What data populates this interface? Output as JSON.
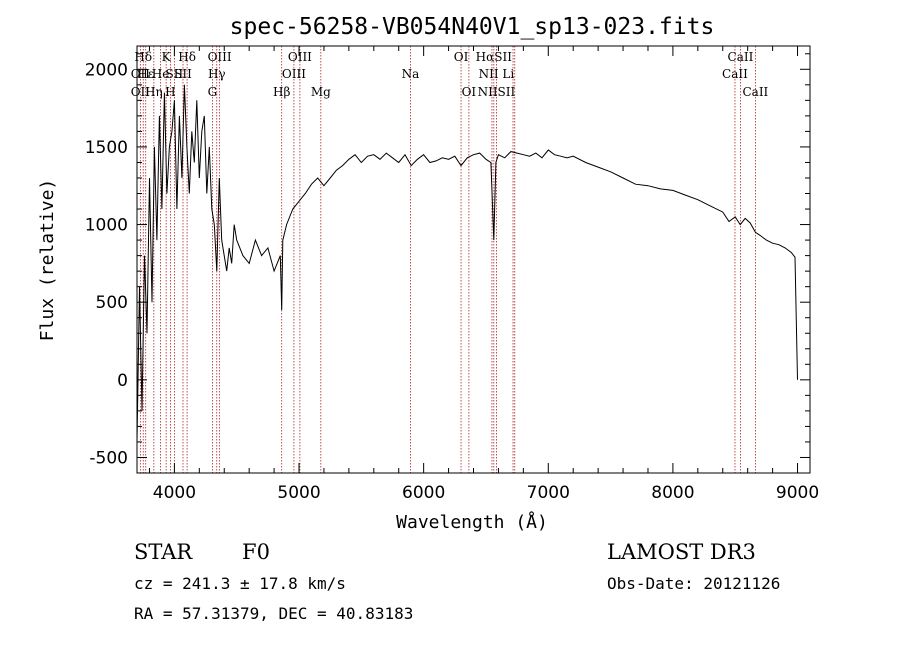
{
  "chart_data": {
    "type": "line",
    "title": "spec-56258-VB054N40V1_sp13-023.fits",
    "xlabel": "Wavelength (Å)",
    "ylabel": "Flux (relative)",
    "xlim": [
      3700,
      9100
    ],
    "ylim": [
      -600,
      2150
    ],
    "xticks": [
      4000,
      5000,
      6000,
      7000,
      8000,
      9000
    ],
    "yticks": [
      -500,
      0,
      500,
      1000,
      1500,
      2000
    ],
    "series": [
      {
        "name": "flux",
        "x": [
          3700,
          3720,
          3740,
          3760,
          3780,
          3800,
          3820,
          3840,
          3860,
          3880,
          3900,
          3920,
          3940,
          3960,
          3980,
          4000,
          4020,
          4040,
          4060,
          4080,
          4100,
          4120,
          4140,
          4160,
          4180,
          4200,
          4220,
          4240,
          4260,
          4280,
          4300,
          4320,
          4340,
          4360,
          4380,
          4400,
          4420,
          4440,
          4460,
          4480,
          4500,
          4550,
          4600,
          4650,
          4700,
          4750,
          4800,
          4850,
          4861,
          4870,
          4900,
          4950,
          5000,
          5050,
          5100,
          5150,
          5200,
          5250,
          5300,
          5350,
          5400,
          5450,
          5500,
          5550,
          5600,
          5650,
          5700,
          5750,
          5800,
          5850,
          5900,
          5950,
          6000,
          6050,
          6100,
          6150,
          6200,
          6250,
          6300,
          6350,
          6400,
          6450,
          6500,
          6540,
          6563,
          6580,
          6600,
          6650,
          6700,
          6750,
          6800,
          6850,
          6900,
          6950,
          7000,
          7050,
          7100,
          7150,
          7200,
          7300,
          7400,
          7500,
          7600,
          7700,
          7800,
          7900,
          8000,
          8100,
          8200,
          8300,
          8400,
          8450,
          8500,
          8540,
          8580,
          8620,
          8662,
          8700,
          8750,
          8800,
          8850,
          8900,
          8950,
          8980,
          9000
        ],
        "values": [
          -400,
          600,
          -200,
          800,
          300,
          1300,
          500,
          1500,
          900,
          1700,
          1100,
          1850,
          1200,
          1500,
          1600,
          1800,
          1100,
          1700,
          1300,
          1900,
          1500,
          1200,
          1600,
          1400,
          1800,
          1300,
          1600,
          1700,
          1200,
          1500,
          1100,
          1000,
          700,
          1300,
          900,
          800,
          700,
          850,
          750,
          1000,
          900,
          800,
          750,
          900,
          800,
          850,
          700,
          800,
          450,
          900,
          1000,
          1100,
          1150,
          1200,
          1260,
          1300,
          1250,
          1300,
          1350,
          1380,
          1420,
          1450,
          1400,
          1440,
          1450,
          1420,
          1460,
          1430,
          1400,
          1450,
          1380,
          1420,
          1450,
          1400,
          1410,
          1430,
          1420,
          1440,
          1380,
          1430,
          1450,
          1460,
          1420,
          1400,
          900,
          1400,
          1450,
          1430,
          1470,
          1460,
          1450,
          1440,
          1460,
          1430,
          1480,
          1450,
          1440,
          1430,
          1440,
          1400,
          1370,
          1340,
          1300,
          1260,
          1250,
          1230,
          1220,
          1190,
          1160,
          1120,
          1080,
          1020,
          1050,
          1000,
          1040,
          1010,
          950,
          930,
          900,
          880,
          870,
          850,
          820,
          790,
          0
        ]
      }
    ],
    "line_markers": [
      {
        "label": "Hδ",
        "x": 3750,
        "row": 0
      },
      {
        "label": "OII",
        "x": 3727,
        "row": 1
      },
      {
        "label": "OII",
        "x": 3727,
        "row": 2
      },
      {
        "label": "Hε",
        "x": 3770,
        "row": 1
      },
      {
        "label": "Hη",
        "x": 3835,
        "row": 2
      },
      {
        "label": "K",
        "x": 3934,
        "row": 0
      },
      {
        "label": "He",
        "x": 3889,
        "row": 1
      },
      {
        "label": "SII",
        "x": 4000,
        "row": 1
      },
      {
        "label": "H",
        "x": 3968,
        "row": 2
      },
      {
        "label": "Hδ",
        "x": 4102,
        "row": 0
      },
      {
        "label": "SII",
        "x": 4069,
        "row": 1
      },
      {
        "label": "OIII",
        "x": 4363,
        "row": 0
      },
      {
        "label": "Hγ",
        "x": 4340,
        "row": 1
      },
      {
        "label": "G",
        "x": 4305,
        "row": 2
      },
      {
        "label": "Hβ",
        "x": 4861,
        "row": 2
      },
      {
        "label": "OIII",
        "x": 5007,
        "row": 0
      },
      {
        "label": "OIII",
        "x": 4959,
        "row": 1
      },
      {
        "label": "Mg",
        "x": 5175,
        "row": 2
      },
      {
        "label": "Na",
        "x": 5894,
        "row": 1
      },
      {
        "label": "OI",
        "x": 6300,
        "row": 0
      },
      {
        "label": "OI",
        "x": 6363,
        "row": 2
      },
      {
        "label": "HαSII",
        "x": 6563,
        "row": 0
      },
      {
        "label": "NII Li",
        "x": 6584,
        "row": 1
      },
      {
        "label": "NIISII",
        "x": 6584,
        "row": 2
      },
      {
        "label": "CaII",
        "x": 8542,
        "row": 0
      },
      {
        "label": "CaII",
        "x": 8498,
        "row": 1
      },
      {
        "label": "CaII",
        "x": 8662,
        "row": 2
      }
    ],
    "marker_lines_x": [
      3727,
      3750,
      3770,
      3835,
      3889,
      3934,
      3968,
      4000,
      4069,
      4102,
      4305,
      4340,
      4363,
      4861,
      4959,
      5007,
      5175,
      5894,
      6300,
      6363,
      6548,
      6563,
      6584,
      6717,
      6731,
      8498,
      8542,
      8662
    ]
  },
  "info": {
    "object_type": "STAR",
    "subclass": "F0",
    "survey": "LAMOST DR3",
    "redshift": "cz = 241.3 ± 17.8 km/s",
    "obs_date": "Obs-Date: 20121126",
    "coords": "RA =  57.31379, DEC =  40.83183"
  },
  "colors": {
    "marker_line": "#b22222",
    "axis": "#000000",
    "spectrum": "#000000"
  }
}
